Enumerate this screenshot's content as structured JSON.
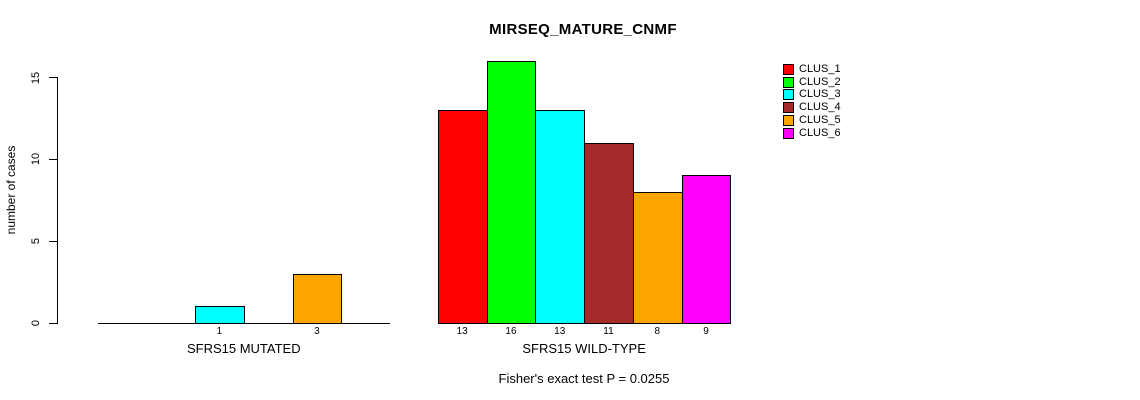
{
  "chart_data": {
    "type": "bar",
    "title": "MIRSEQ_MATURE_CNMF",
    "ylabel": "number of cases",
    "caption": "Fisher's exact test P = 0.0255",
    "yticks": [
      0,
      5,
      10,
      15
    ],
    "ylim": [
      0,
      15
    ],
    "grid": false,
    "legend_position": "topright",
    "series_labels": [
      "CLUS_1",
      "CLUS_2",
      "CLUS_3",
      "CLUS_4",
      "CLUS_5",
      "CLUS_6"
    ],
    "series_colors": [
      "#FF0000",
      "#00FF00",
      "#00FFFF",
      "#A52A2A",
      "#FFA500",
      "#FF00FF"
    ],
    "groups": [
      {
        "label": "SFRS15 MUTATED",
        "values": [
          0,
          0,
          1,
          0,
          3,
          0
        ],
        "bar_labels": [
          "",
          "",
          "1",
          "",
          "3",
          ""
        ]
      },
      {
        "label": "SFRS15 WILD-TYPE",
        "values": [
          13,
          16,
          13,
          11,
          8,
          9
        ],
        "bar_labels": [
          "13",
          "16",
          "13",
          "11",
          "8",
          "9"
        ]
      }
    ]
  }
}
